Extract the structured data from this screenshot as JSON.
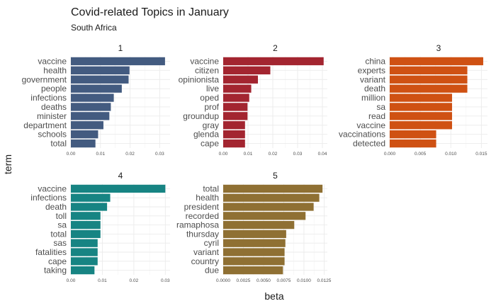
{
  "chart_data": {
    "type": "bar",
    "orientation": "horizontal",
    "title": "Covid-related Topics in January",
    "subtitle": "South Africa",
    "xlabel": "beta",
    "ylabel": "term",
    "grid": true,
    "facets": [
      {
        "label": "1",
        "color": "#435b80",
        "xlim": [
          0,
          0.0335
        ],
        "ticks": [
          0,
          0.01,
          0.02,
          0.03
        ],
        "tick_labels": [
          "0.00",
          "0.01",
          "0.02",
          "0.03"
        ],
        "categories": [
          "vaccine",
          "health",
          "government",
          "people",
          "infections",
          "deaths",
          "minister",
          "department",
          "schools",
          "total"
        ],
        "values": [
          0.0318,
          0.0198,
          0.0195,
          0.0172,
          0.0145,
          0.0135,
          0.013,
          0.011,
          0.0092,
          0.0083
        ]
      },
      {
        "label": "2",
        "color": "#a32530",
        "xlim": [
          0,
          0.042
        ],
        "ticks": [
          0,
          0.01,
          0.02,
          0.03,
          0.04
        ],
        "tick_labels": [
          "0.00",
          "0.01",
          "0.02",
          "0.03",
          "0.04"
        ],
        "categories": [
          "vaccine",
          "citizen",
          "opinionista",
          "live",
          "oped",
          "prof",
          "groundup",
          "gray",
          "glenda",
          "cape"
        ],
        "values": [
          0.0405,
          0.019,
          0.014,
          0.0113,
          0.0105,
          0.0098,
          0.0098,
          0.0088,
          0.0088,
          0.0088
        ]
      },
      {
        "label": "3",
        "color": "#cf5113",
        "xlim": [
          0,
          0.016
        ],
        "ticks": [
          0,
          0.005,
          0.01,
          0.015
        ],
        "tick_labels": [
          "0.000",
          "0.005",
          "0.010",
          "0.015"
        ],
        "categories": [
          "china",
          "experts",
          "variant",
          "death",
          "million",
          "sa",
          "read",
          "vaccine",
          "vaccinations",
          "detected"
        ],
        "values": [
          0.0153,
          0.0127,
          0.0127,
          0.0127,
          0.0102,
          0.0102,
          0.0102,
          0.0102,
          0.0076,
          0.0076
        ]
      },
      {
        "label": "4",
        "color": "#178483",
        "xlim": [
          0,
          0.0315
        ],
        "ticks": [
          0,
          0.01,
          0.02,
          0.03
        ],
        "tick_labels": [
          "0.00",
          "0.01",
          "0.02",
          "0.03"
        ],
        "categories": [
          "vaccine",
          "infections",
          "death",
          "toll",
          "sa",
          "total",
          "sas",
          "fatalities",
          "cape",
          "taking"
        ],
        "values": [
          0.03,
          0.0125,
          0.0115,
          0.0094,
          0.0094,
          0.0094,
          0.0085,
          0.0085,
          0.0085,
          0.0075
        ]
      },
      {
        "label": "5",
        "color": "#8f7033",
        "xlim": [
          0,
          0.0129
        ],
        "ticks": [
          0,
          0.0025,
          0.005,
          0.0075,
          0.01,
          0.0125
        ],
        "tick_labels": [
          "0.0000",
          "0.0025",
          "0.0050",
          "0.0075",
          "0.0100",
          "0.0125"
        ],
        "categories": [
          "total",
          "health",
          "president",
          "recorded",
          "ramaphosa",
          "thursday",
          "cyril",
          "variant",
          "country",
          "due"
        ],
        "values": [
          0.0123,
          0.0119,
          0.0112,
          0.0102,
          0.0088,
          0.0078,
          0.0077,
          0.0076,
          0.0076,
          0.0074
        ]
      }
    ]
  }
}
